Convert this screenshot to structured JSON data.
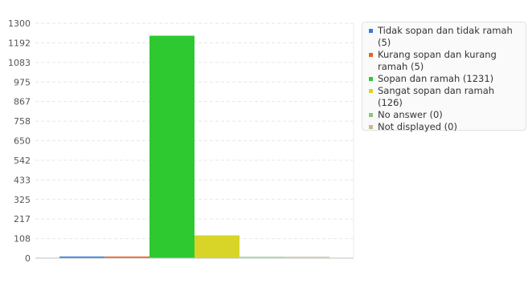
{
  "chart_data": {
    "type": "bar",
    "categories": [
      "Tidak sopan dan tidak ramah (5)",
      "Kurang sopan dan kurang ramah (5)",
      "Sopan dan ramah (1231)",
      "Sangat sopan dan ramah (126)",
      "No answer (0)",
      "Not displayed (0)"
    ],
    "values": [
      5,
      5,
      1231,
      126,
      0,
      0
    ],
    "colors": [
      "#2f7ed8",
      "#e5632a",
      "#2ec930",
      "#d8d428",
      "#84c97f",
      "#c8b892"
    ],
    "yticks": [
      "1300",
      "1192",
      "1083",
      "975",
      "867",
      "758",
      "650",
      "542",
      "433",
      "325",
      "217",
      "108",
      "0"
    ],
    "ylim": [
      0,
      1300
    ],
    "grid": true,
    "legend_position": "right"
  }
}
